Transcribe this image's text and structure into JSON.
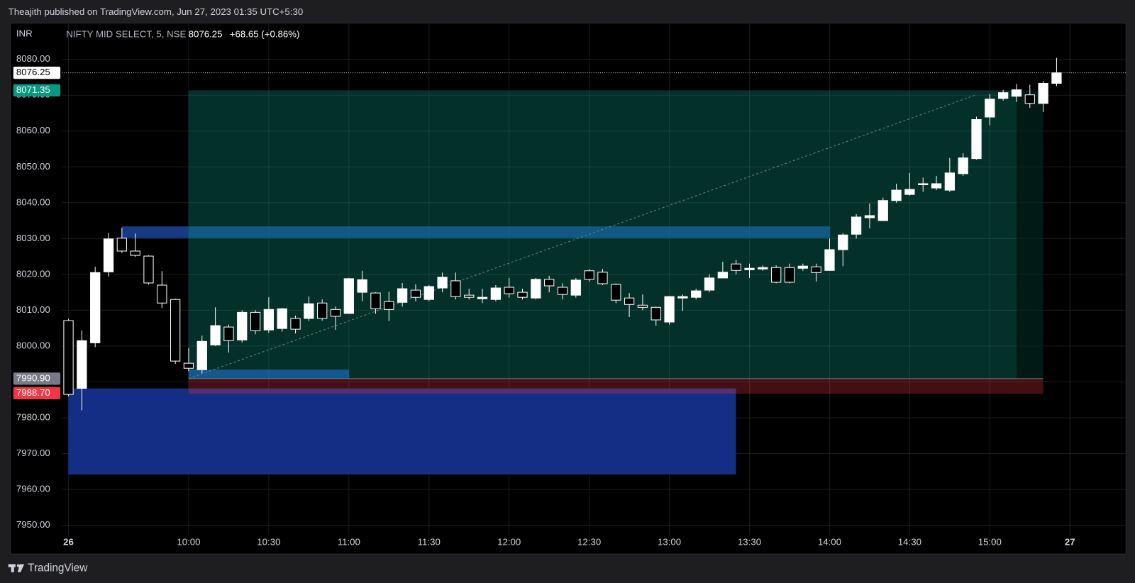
{
  "header": {
    "publisher": "Theajith published on TradingView.com, Jun 27, 2023 01:35 UTC+5:30"
  },
  "footer": {
    "brand": "TradingView"
  },
  "chart_data": {
    "type": "candlestick",
    "currency": "INR",
    "symbol": "NIFTY MID SELECT, 5, NSE",
    "last_price": 8076.25,
    "change": "+68.65 (+0.86%)",
    "xlim": [
      -0.5,
      79.2
    ],
    "xticks": [
      {
        "value": 0,
        "label": "26"
      },
      {
        "value": 9,
        "label": "10:00"
      },
      {
        "value": 15,
        "label": "10:30"
      },
      {
        "value": 21,
        "label": "11:00"
      },
      {
        "value": 27,
        "label": "11:30"
      },
      {
        "value": 33,
        "label": "12:00"
      },
      {
        "value": 39,
        "label": "12:30"
      },
      {
        "value": 45,
        "label": "13:00"
      },
      {
        "value": 51,
        "label": "13:30"
      },
      {
        "value": 57,
        "label": "14:00"
      },
      {
        "value": 63,
        "label": "14:30"
      },
      {
        "value": 69,
        "label": "15:00"
      },
      {
        "value": 75,
        "label": "27"
      }
    ],
    "ylim": [
      7947.2,
      8090.1
    ],
    "yticks": [
      {
        "value": 7950,
        "label": "7950.00"
      },
      {
        "value": 7960,
        "label": "7960.00"
      },
      {
        "value": 7970,
        "label": "7970.00"
      },
      {
        "value": 7980,
        "label": "7980.00"
      },
      {
        "value": 7990,
        "label": "7990.00"
      },
      {
        "value": 8000,
        "label": "8000.00"
      },
      {
        "value": 8010,
        "label": "8010.00"
      },
      {
        "value": 8020,
        "label": "8020.00"
      },
      {
        "value": 8030,
        "label": "8030.00"
      },
      {
        "value": 8040,
        "label": "8040.00"
      },
      {
        "value": 8050,
        "label": "8050.00"
      },
      {
        "value": 8060,
        "label": "8060.00"
      },
      {
        "value": 8070,
        "label": "8070.00"
      },
      {
        "value": 8080,
        "label": "8080.00"
      }
    ],
    "grid": true,
    "colors": {
      "up": "#ffffff",
      "down": "#000000",
      "wick": "#ffffff"
    },
    "open": [
      8007.1,
      7988.2,
      8000.9,
      8020.7,
      8030.1,
      8026.5,
      8025.1,
      8017.0,
      8013.0,
      7995.2,
      7993.4,
      8000.3,
      8005.3,
      8001.7,
      8009.4,
      8004.5,
      8004.9,
      8007.7,
      8007.7,
      8012.0,
      8010.2,
      8009.1,
      8015.0,
      8014.8,
      8012.4,
      8012.2,
      8015.6,
      8013.0,
      8016.2,
      8018.2,
      8014.2,
      8013.2,
      8013.0,
      8016.4,
      8015.0,
      8013.4,
      8018.6,
      8016.4,
      8014.2,
      8021.0,
      8020.6,
      8017.2,
      8013.4,
      8011.4,
      8010.8,
      8006.7,
      8013.4,
      8013.6,
      8015.6,
      8019.0,
      8022.9,
      8021.3,
      8021.5,
      8021.9,
      8021.9,
      8021.7,
      8022.1,
      8021.1,
      8026.9,
      8031.2,
      8035.8,
      8035.0,
      8040.6,
      8042.3,
      8045.0,
      8044.1,
      8043.5,
      8048.1,
      8052.3,
      8063.9,
      8069.1,
      8069.7,
      8070.1,
      8067.7,
      8073.3
    ],
    "high": [
      8007.6,
      8004.3,
      8022.1,
      8031.6,
      8033.0,
      8031.4,
      8025.3,
      8020.9,
      8013.2,
      7999.5,
      8002.9,
      8010.8,
      8006.0,
      8010.0,
      8010.0,
      8013.6,
      8010.6,
      8008.5,
      8013.8,
      8013.0,
      8011.0,
      8019.0,
      8021.0,
      8015.0,
      8015.2,
      8017.6,
      8017.2,
      8017.0,
      8020.5,
      8020.5,
      8016.0,
      8016.0,
      8017.0,
      8019.0,
      8016.0,
      8019.0,
      8019.6,
      8017.5,
      8019.0,
      8021.5,
      8021.5,
      8017.5,
      8014.8,
      8014.4,
      8011.0,
      8014.0,
      8014.4,
      8016.0,
      8020.0,
      8023.5,
      8024.0,
      8023.0,
      8022.5,
      8022.5,
      8023.0,
      8023.0,
      8023.0,
      8030.0,
      8031.5,
      8036.8,
      8039.8,
      8041.4,
      8045.3,
      8048.3,
      8047.0,
      8047.5,
      8052.5,
      8053.8,
      8064.0,
      8070.3,
      8071.5,
      8073.1,
      8072.9,
      8074.0,
      8080.4
    ],
    "low": [
      7986.0,
      7982.1,
      7999.7,
      8019.4,
      8026.0,
      8024.9,
      8017.2,
      8010.6,
      7995.0,
      7993.0,
      7992.4,
      8000.0,
      7998.2,
      8001.0,
      8003.3,
      8003.7,
      8004.0,
      8003.5,
      8007.0,
      8007.1,
      8004.5,
      8009.0,
      8012.5,
      8009.0,
      8007.0,
      8011.0,
      8012.5,
      8012.5,
      8015.0,
      8013.0,
      8013.0,
      8012.0,
      8012.5,
      8013.5,
      8013.0,
      8013.0,
      8015.0,
      8013.0,
      8013.5,
      8018.0,
      8017.0,
      8012.0,
      8008.1,
      8010.0,
      8005.7,
      8006.0,
      8009.8,
      8013.0,
      8015.0,
      8020.0,
      8020.0,
      8019.0,
      8021.0,
      8017.5,
      8017.5,
      8021.0,
      8018.0,
      8021.0,
      8022.3,
      8030.0,
      8032.8,
      8035.0,
      8040.0,
      8042.0,
      8043.0,
      8043.5,
      8043.0,
      8047.5,
      8052.0,
      8061.6,
      8068.5,
      8068.1,
      8066.5,
      8065.3,
      8072.5
    ],
    "close": [
      7986.5,
      8001.5,
      8020.5,
      8029.9,
      8026.5,
      8025.3,
      8017.6,
      8012.0,
      7995.8,
      7993.8,
      8001.3,
      8005.7,
      8001.5,
      8009.4,
      8004.3,
      8010.2,
      8010.4,
      8004.7,
      8011.8,
      8007.7,
      8008.3,
      8018.8,
      8018.5,
      8010.4,
      8010.2,
      8016.0,
      8013.6,
      8016.6,
      8019.2,
      8013.8,
      8013.6,
      8013.6,
      8016.2,
      8014.6,
      8013.6,
      8018.6,
      8016.8,
      8014.4,
      8018.4,
      8018.6,
      8017.4,
      8012.8,
      8011.6,
      8010.8,
      8007.3,
      8013.8,
      8013.8,
      8015.4,
      8019.0,
      8020.6,
      8021.1,
      8021.7,
      8021.9,
      8017.8,
      8017.8,
      8022.3,
      8020.5,
      8026.9,
      8031.0,
      8036.0,
      8036.4,
      8040.6,
      8043.5,
      8043.7,
      8045.3,
      8045.3,
      8048.3,
      8052.5,
      8063.2,
      8068.9,
      8070.7,
      8071.5,
      8067.7,
      8073.3,
      8076.25
    ],
    "position": {
      "target": 8071.35,
      "entry": {
        "value": 7990.9,
        "label": "7990.90"
      },
      "stop": {
        "value": 7988.7,
        "label": "7988.70"
      }
    }
  }
}
